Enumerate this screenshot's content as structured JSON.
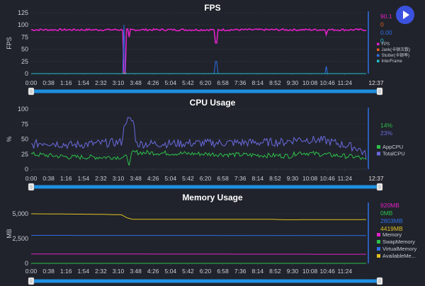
{
  "colors": {
    "background": "#20232b",
    "grid": "#3a3e48",
    "text": "#c8ccd4",
    "title": "#ffffff",
    "slider_track": "#1e8fe0",
    "cursor_line": "#2f6fe8",
    "fps": "#e020c8",
    "jank": "#e06020",
    "stutter": "#2f6fe8",
    "interframe": "#20c0d0",
    "appcpu": "#2cc04a",
    "totalcpu": "#6a6ae0",
    "memory": "#e020c8",
    "swap": "#2cc04a",
    "virtual": "#2f6fe8",
    "available": "#e0c020",
    "play_button": "#3b52e0"
  },
  "play_button": {
    "icon": "play-icon"
  },
  "x_ticks": [
    "0:00",
    "0:38",
    "1:16",
    "1:54",
    "2:32",
    "3:10",
    "3:48",
    "4:26",
    "5:04",
    "5:42",
    "6:20",
    "6:58",
    "7:36",
    "8:14",
    "8:52",
    "9:30",
    "10:08",
    "10:46",
    "11:24",
    "12:37"
  ],
  "charts": [
    {
      "id": "fps",
      "title": "FPS",
      "ylabel": "FPS",
      "yticks": [
        "0",
        "25",
        "50",
        "75",
        "100",
        "125"
      ],
      "current_values": [
        "90.1",
        "0",
        "0.00",
        "0"
      ],
      "legend": [
        "FPS",
        "Jank(卡顿次数)",
        "Stutter(卡顿率)",
        "InterFrame"
      ],
      "end_label": "12:37"
    },
    {
      "id": "cpu",
      "title": "CPU Usage",
      "ylabel": "%",
      "yticks": [
        "0",
        "25",
        "50",
        "75",
        "100"
      ],
      "current_values": [
        "14%",
        "23%"
      ],
      "legend": [
        "AppCPU",
        "TotalCPU"
      ],
      "end_label": "12:37"
    },
    {
      "id": "memory",
      "title": "Memory Usage",
      "ylabel": "MB",
      "yticks": [
        "0",
        "2,500",
        "5,000"
      ],
      "current_values": [
        "920MB",
        "0MB",
        "2803MB",
        "4419MB"
      ],
      "legend": [
        "Memory",
        "SwapMemory",
        "VirtualMemory",
        "AvailableMe..."
      ],
      "end_label": ""
    }
  ],
  "chart_data": [
    {
      "type": "line",
      "title": "FPS",
      "ylabel": "FPS",
      "ylim": [
        0,
        125
      ],
      "x_range": [
        "0:00",
        "12:37"
      ],
      "series": [
        {
          "name": "FPS",
          "baseline": 90,
          "noise": 2,
          "dips": [
            [
              3.5,
              0,
              1
            ],
            [
              3.55,
              0,
              1
            ],
            [
              3.7,
              75,
              1
            ],
            [
              6.95,
              63,
              1
            ],
            [
              11.1,
              80,
              1
            ]
          ]
        },
        {
          "name": "Jank(卡顿次数)",
          "baseline": 0,
          "spikes": [
            [
              3.5,
              3
            ],
            [
              3.55,
              3
            ]
          ]
        },
        {
          "name": "Stutter(卡顿率)",
          "baseline": 0,
          "spikes": [
            [
              3.5,
              100
            ],
            [
              6.95,
              25
            ],
            [
              11.1,
              15
            ]
          ]
        },
        {
          "name": "InterFrame",
          "baseline": 0,
          "spikes": []
        }
      ]
    },
    {
      "type": "line",
      "title": "CPU Usage",
      "ylabel": "%",
      "ylim": [
        0,
        100
      ],
      "x_range": [
        "0:00",
        "12:37"
      ],
      "series": [
        {
          "name": "AppCPU",
          "baseline": 22,
          "noise": 4,
          "segments": [
            [
              0,
              25
            ],
            [
              1.5,
              20
            ],
            [
              3.6,
              20
            ],
            [
              3.7,
              8
            ],
            [
              3.8,
              28
            ],
            [
              9.8,
              22
            ],
            [
              10,
              28
            ],
            [
              12.3,
              20
            ],
            [
              12.6,
              14
            ]
          ]
        },
        {
          "name": "TotalCPU",
          "baseline": 40,
          "noise": 7,
          "segments": [
            [
              0,
              40
            ],
            [
              0.5,
              45
            ],
            [
              1.5,
              40
            ],
            [
              3.4,
              45
            ],
            [
              3.55,
              82
            ],
            [
              3.85,
              80
            ],
            [
              3.95,
              42
            ],
            [
              9.5,
              45
            ],
            [
              10,
              50
            ],
            [
              11,
              48
            ],
            [
              12.3,
              35
            ],
            [
              12.6,
              23
            ]
          ]
        }
      ]
    },
    {
      "type": "line",
      "title": "Memory Usage",
      "ylabel": "MB",
      "ylim": [
        0,
        6000
      ],
      "x_range": [
        "0:00",
        "12:37"
      ],
      "series": [
        {
          "name": "Memory",
          "segments": [
            [
              0,
              950
            ],
            [
              12.6,
              920
            ]
          ]
        },
        {
          "name": "SwapMemory",
          "segments": [
            [
              0,
              0
            ],
            [
              12.6,
              0
            ]
          ]
        },
        {
          "name": "VirtualMemory",
          "segments": [
            [
              0,
              2820
            ],
            [
              12.6,
              2803
            ]
          ]
        },
        {
          "name": "AvailableMe...",
          "segments": [
            [
              0,
              5000
            ],
            [
              2.5,
              4950
            ],
            [
              3.4,
              4900
            ],
            [
              3.6,
              4600
            ],
            [
              3.8,
              4450
            ],
            [
              9.0,
              4450
            ],
            [
              9.5,
              4400
            ],
            [
              12.6,
              4419
            ]
          ]
        }
      ]
    }
  ]
}
